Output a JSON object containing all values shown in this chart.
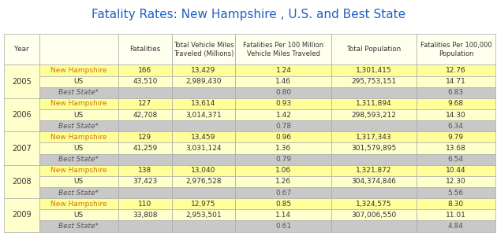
{
  "title": "Fatality Rates: New Hampshire , U.S. and Best State",
  "title_color": "#2060C0",
  "rows": [
    [
      "2005",
      "New Hampshire",
      "166",
      "13,429",
      "1.24",
      "1,301,415",
      "12.76"
    ],
    [
      "2005",
      "US",
      "43,510",
      "2,989,430",
      "1.46",
      "295,753,151",
      "14.71"
    ],
    [
      "2005",
      "Best State*",
      "",
      "",
      "0.80",
      "",
      "6.83"
    ],
    [
      "2006",
      "New Hampshire",
      "127",
      "13,614",
      "0.93",
      "1,311,894",
      "9.68"
    ],
    [
      "2006",
      "US",
      "42,708",
      "3,014,371",
      "1.42",
      "298,593,212",
      "14.30"
    ],
    [
      "2006",
      "Best State*",
      "",
      "",
      "0.78",
      "",
      "6.34"
    ],
    [
      "2007",
      "New Hampshire",
      "129",
      "13,459",
      "0.96",
      "1,317,343",
      "9.79"
    ],
    [
      "2007",
      "US",
      "41,259",
      "3,031,124",
      "1.36",
      "301,579,895",
      "13.68"
    ],
    [
      "2007",
      "Best State*",
      "",
      "",
      "0.79",
      "",
      "6.54"
    ],
    [
      "2008",
      "New Hampshire",
      "138",
      "13,040",
      "1.06",
      "1,321,872",
      "10.44"
    ],
    [
      "2008",
      "US",
      "37,423",
      "2,976,528",
      "1.26",
      "304,374,846",
      "12.30"
    ],
    [
      "2008",
      "Best State*",
      "",
      "",
      "0.67",
      "",
      "5.56"
    ],
    [
      "2009",
      "New Hampshire",
      "110",
      "12,975",
      "0.85",
      "1,324,575",
      "8.30"
    ],
    [
      "2009",
      "US",
      "33,808",
      "2,953,501",
      "1.14",
      "307,006,550",
      "11.01"
    ],
    [
      "2009",
      "Best State*",
      "",
      "",
      "0.61",
      "",
      "4.84"
    ]
  ],
  "col_headers": [
    "Year",
    "",
    "Fatalities",
    "Total Vehicle Miles\nTraveled (Millions)",
    "Fatalities Per 100 Million\nVehicle Miles Traveled",
    "Total Population",
    "Fatalities Per 100,000\nPopulation"
  ],
  "color_nh": "#FFFF99",
  "color_us": "#FFFFCC",
  "color_best": "#C8C8C8",
  "color_header": "#FFFFEE",
  "color_year_nh": "#FFFF99",
  "color_year_us": "#FFFFCC",
  "color_year_best": "#C8C8C8",
  "color_border": "#AAAAAA",
  "nh_name_color": "#CC7700",
  "dark_text": "#333333",
  "gray_text": "#555555",
  "header_text_color": "#333333",
  "year_text_color": "#333333",
  "title_fontsize": 11,
  "header_fontsize": 6.3,
  "data_fontsize": 6.5
}
